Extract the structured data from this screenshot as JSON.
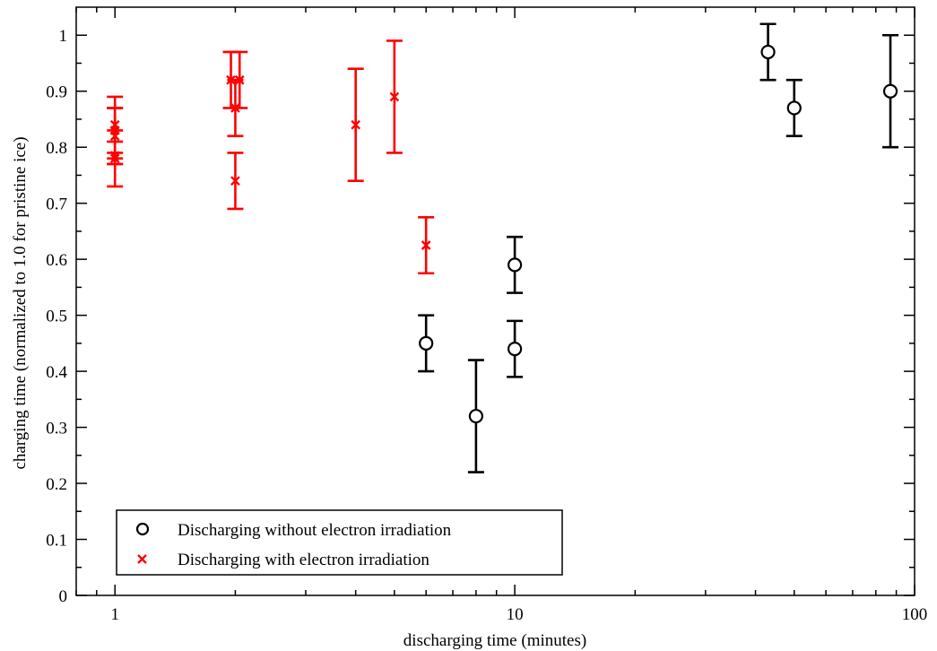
{
  "chart_data": {
    "type": "scatter",
    "xlabel": "discharging time (minutes)",
    "ylabel": "charging time (normalized to 1.0 for pristine ice)",
    "xscale": "log",
    "xlim": [
      0.8,
      100
    ],
    "ylim": [
      0,
      1.05
    ],
    "xticks_major": [
      1,
      10,
      100
    ],
    "xtick_labels": [
      "1",
      "10",
      "100"
    ],
    "xticks_minor": [
      0.8,
      0.9,
      2,
      3,
      4,
      5,
      6,
      7,
      8,
      9,
      20,
      30,
      40,
      50,
      60,
      70,
      80,
      90
    ],
    "yticks": [
      0,
      0.1,
      0.2,
      0.3,
      0.4,
      0.5,
      0.6,
      0.7,
      0.8,
      0.9,
      1
    ],
    "ytick_labels": [
      "0",
      "0.1",
      "0.2",
      "0.3",
      "0.4",
      "0.5",
      "0.6",
      "0.7",
      "0.8",
      "0.9",
      "1"
    ],
    "yticks_minor": [
      0.05,
      0.15,
      0.25,
      0.35,
      0.45,
      0.55,
      0.65,
      0.75,
      0.85,
      0.95
    ],
    "grid": false,
    "legend_position": "bottom-left",
    "series": [
      {
        "name": "Discharging without electron irradiation",
        "marker": "circle",
        "color": "#000000",
        "points": [
          {
            "x": 6,
            "y": 0.45,
            "err": 0.05
          },
          {
            "x": 8,
            "y": 0.32,
            "err": 0.1
          },
          {
            "x": 10,
            "y": 0.59,
            "err": 0.05
          },
          {
            "x": 10,
            "y": 0.44,
            "err": 0.05
          },
          {
            "x": 43,
            "y": 0.97,
            "err": 0.05
          },
          {
            "x": 50,
            "y": 0.87,
            "err": 0.05
          },
          {
            "x": 87,
            "y": 0.9,
            "err": 0.1
          }
        ]
      },
      {
        "name": "Discharging with electron irradiation",
        "marker": "x",
        "color": "#ff0000",
        "points": [
          {
            "x": 1,
            "y": 0.83,
            "err": 0.06
          },
          {
            "x": 1,
            "y": 0.84,
            "err": 0.03
          },
          {
            "x": 1,
            "y": 0.82,
            "err": 0.05
          },
          {
            "x": 1,
            "y": 0.78,
            "err": 0.05
          },
          {
            "x": 1,
            "y": 0.785,
            "err": 0.005
          },
          {
            "x": 1.95,
            "y": 0.92,
            "err": 0.05
          },
          {
            "x": 2,
            "y": 0.87,
            "err": 0.05
          },
          {
            "x": 2.05,
            "y": 0.92,
            "err": 0.05
          },
          {
            "x": 2,
            "y": 0.74,
            "err": 0.05
          },
          {
            "x": 4,
            "y": 0.84,
            "err": 0.1
          },
          {
            "x": 5,
            "y": 0.89,
            "err": 0.1
          },
          {
            "x": 6,
            "y": 0.625,
            "err": 0.05
          }
        ]
      }
    ]
  }
}
